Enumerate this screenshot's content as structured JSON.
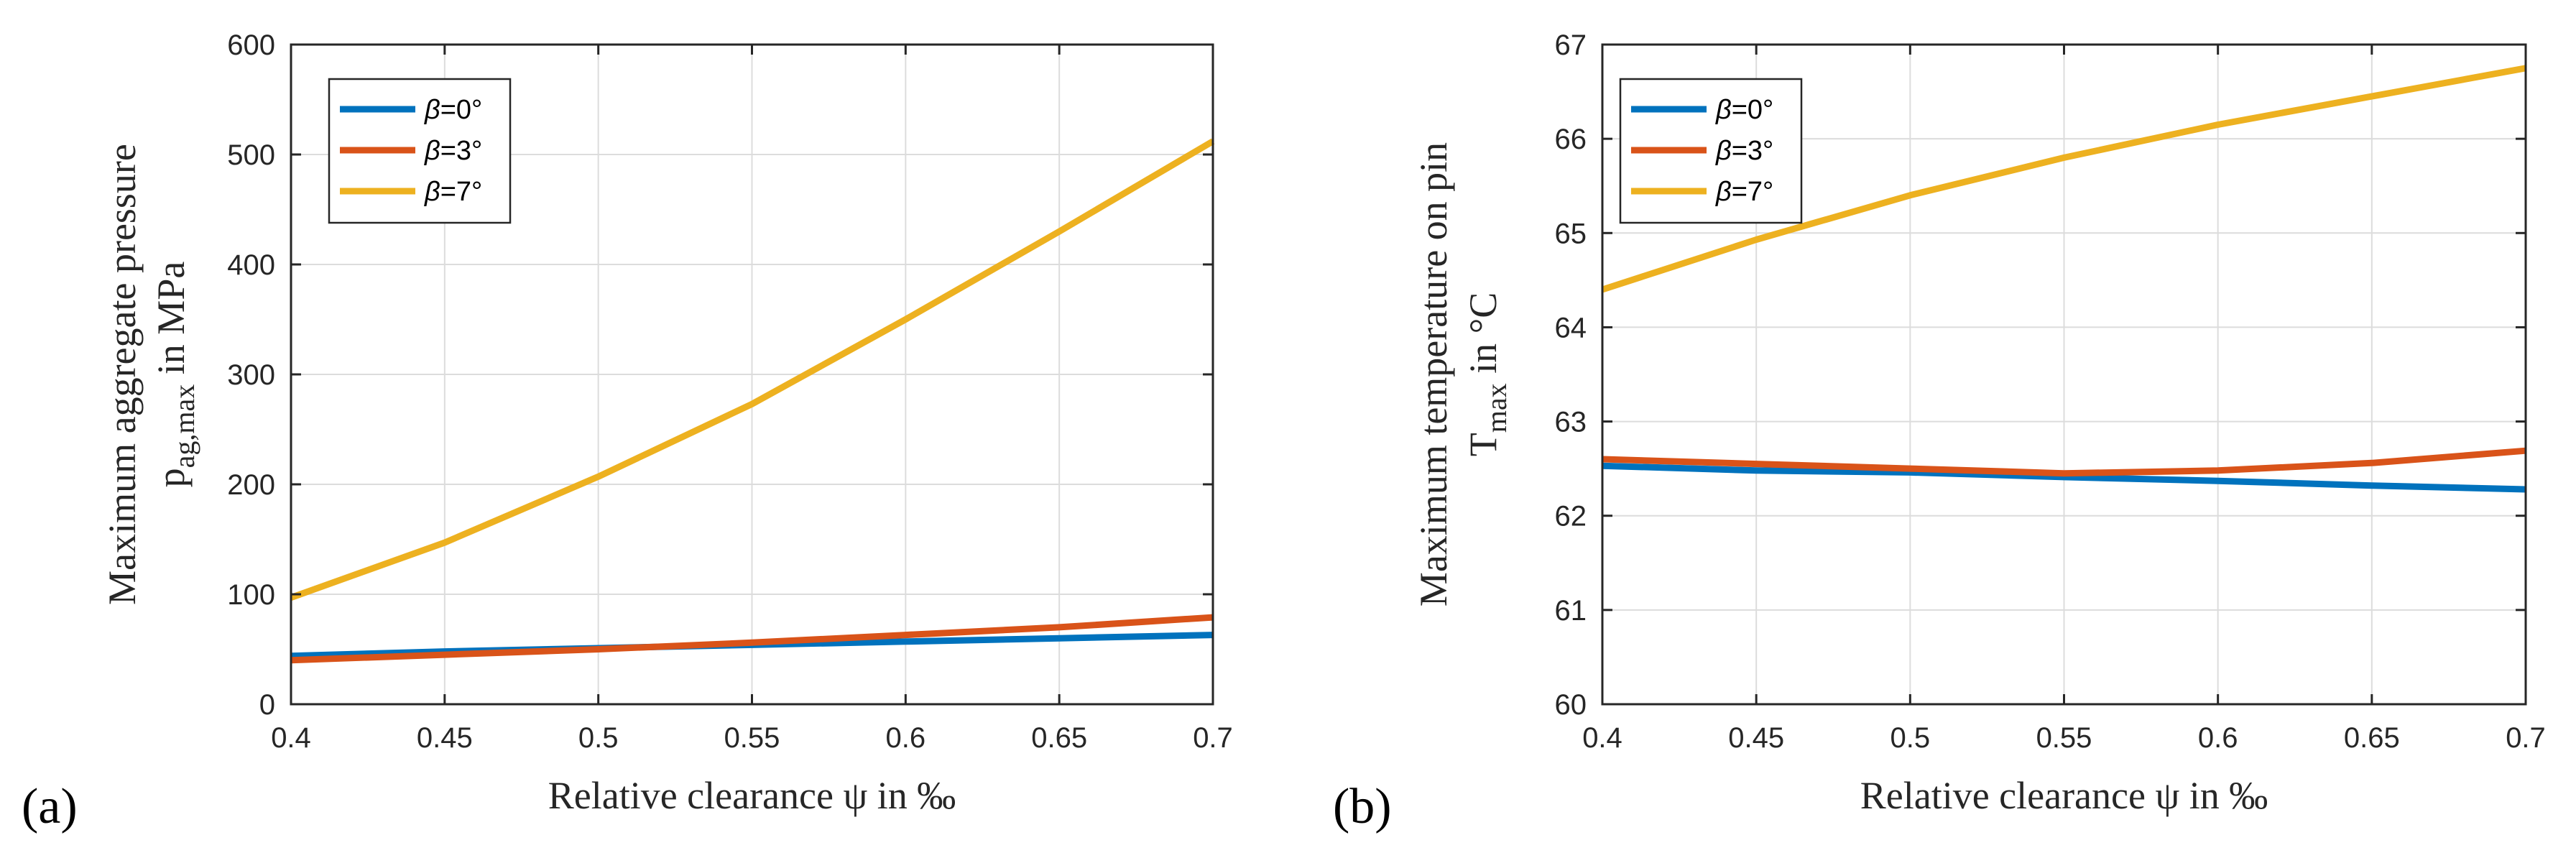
{
  "chart_data": [
    {
      "panel_label": "(a)",
      "type": "line",
      "xlabel": "Relative clearance ψ in ‰",
      "ylabel_line1": "Maximum aggregate pressure",
      "ylabel_line2": "p",
      "ylabel_sub": "ag,max",
      "ylabel_tail": " in MPa",
      "xlim": [
        0.4,
        0.7
      ],
      "ylim": [
        0,
        600
      ],
      "xticks": [
        0.4,
        0.45,
        0.5,
        0.55,
        0.6,
        0.65,
        0.7
      ],
      "xtick_labels": [
        "0.4",
        "0.45",
        "0.5",
        "0.55",
        "0.6",
        "0.65",
        "0.7"
      ],
      "yticks": [
        0,
        100,
        200,
        300,
        400,
        500,
        600
      ],
      "ytick_labels": [
        "0",
        "100",
        "200",
        "300",
        "400",
        "500",
        "600"
      ],
      "grid": true,
      "legend_position": "top-left",
      "x": [
        0.4,
        0.45,
        0.5,
        0.55,
        0.6,
        0.65,
        0.7
      ],
      "series": [
        {
          "name": "β=0°",
          "symbol": "β",
          "suffix": "=0°",
          "color": "#0072BD",
          "values": [
            44,
            48,
            51,
            54,
            57,
            60,
            63
          ]
        },
        {
          "name": "β=3°",
          "symbol": "β",
          "suffix": "=3°",
          "color": "#D95319",
          "values": [
            40,
            45,
            50,
            56,
            63,
            70,
            79
          ]
        },
        {
          "name": "β=7°",
          "symbol": "β",
          "suffix": "=7°",
          "color": "#EDB120",
          "values": [
            97,
            147,
            207,
            273,
            350,
            430,
            512
          ]
        }
      ]
    },
    {
      "panel_label": "(b)",
      "type": "line",
      "xlabel": "Relative clearance ψ in ‰",
      "ylabel_line1": "Maximum temperature on pin",
      "ylabel_line2": "T",
      "ylabel_sub": "max",
      "ylabel_tail": " in °C",
      "xlim": [
        0.4,
        0.7
      ],
      "ylim": [
        60,
        67
      ],
      "xticks": [
        0.4,
        0.45,
        0.5,
        0.55,
        0.6,
        0.65,
        0.7
      ],
      "xtick_labels": [
        "0.4",
        "0.45",
        "0.5",
        "0.55",
        "0.6",
        "0.65",
        "0.7"
      ],
      "yticks": [
        60,
        61,
        62,
        63,
        64,
        65,
        66,
        67
      ],
      "ytick_labels": [
        "60",
        "61",
        "62",
        "63",
        "64",
        "65",
        "66",
        "67"
      ],
      "grid": true,
      "legend_position": "top-left",
      "x": [
        0.4,
        0.45,
        0.5,
        0.55,
        0.6,
        0.65,
        0.7
      ],
      "series": [
        {
          "name": "β=0°",
          "symbol": "β",
          "suffix": "=0°",
          "color": "#0072BD",
          "values": [
            62.53,
            62.48,
            62.46,
            62.41,
            62.37,
            62.32,
            62.28
          ]
        },
        {
          "name": "β=3°",
          "symbol": "β",
          "suffix": "=3°",
          "color": "#D95319",
          "values": [
            62.6,
            62.55,
            62.5,
            62.45,
            62.48,
            62.56,
            62.69
          ]
        },
        {
          "name": "β=7°",
          "symbol": "β",
          "suffix": "=7°",
          "color": "#EDB120",
          "values": [
            64.4,
            64.93,
            65.4,
            65.8,
            66.15,
            66.45,
            66.75
          ]
        }
      ]
    }
  ]
}
